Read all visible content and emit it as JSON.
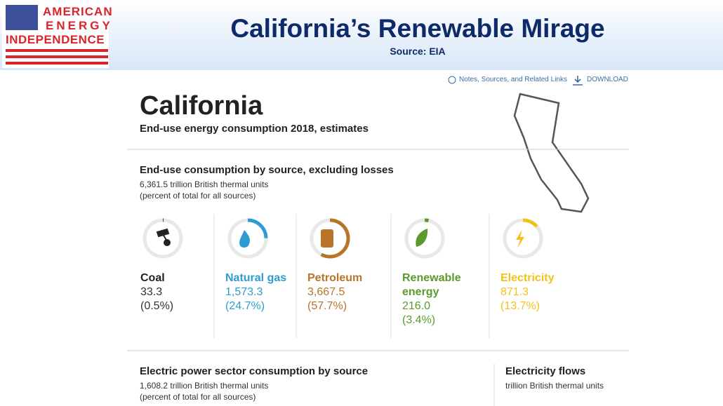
{
  "header": {
    "logo": [
      "AMERICAN",
      "ENERGY",
      "INDEPENDENCE"
    ],
    "title": "California’s Renewable Mirage",
    "source": "Source: EIA"
  },
  "links": {
    "notes": "Notes, Sources, and Related Links",
    "download": "DOWNLOAD"
  },
  "state": {
    "name": "California",
    "subtitle": "End-use energy consumption 2018, estimates"
  },
  "end_use": {
    "title": "End-use consumption by source, excluding losses",
    "total": "6,361.5 trillion British thermal units",
    "note": "(percent of total for all sources)",
    "sources": [
      {
        "name": "Coal",
        "value": "33.3",
        "percent": {
          "value": 0.5,
          "label": "(0.5%)"
        },
        "color": "#222222",
        "text_color": "#222222"
      },
      {
        "name": "Natural gas",
        "value": "1,573.3",
        "percent": {
          "value": 24.7,
          "label": "(24.7%)"
        },
        "color": "#2e9cd3",
        "text_color": "#2e9cd3"
      },
      {
        "name": "Petroleum",
        "value": "3,667.5",
        "percent": {
          "value": 57.7,
          "label": "(57.7%)"
        },
        "color": "#b87429",
        "text_color": "#b87429"
      },
      {
        "name": "Renewable energy",
        "value": "216.0",
        "percent": {
          "value": 3.4,
          "label": "(3.4%)"
        },
        "color": "#5a9a2e",
        "text_color": "#5a9a2e"
      },
      {
        "name": "Electricity",
        "value": "871.3",
        "percent": {
          "value": 13.7,
          "label": "(13.7%)"
        },
        "color": "#f2c21b",
        "text_color": "#f2c21b"
      }
    ]
  },
  "electric_power": {
    "title": "Electric power sector consumption by source",
    "total": "1,608.2 trillion British thermal units",
    "note": "(percent of total for all sources)"
  },
  "flows": {
    "title": "Electricity flows",
    "units": "trillion British thermal units"
  }
}
